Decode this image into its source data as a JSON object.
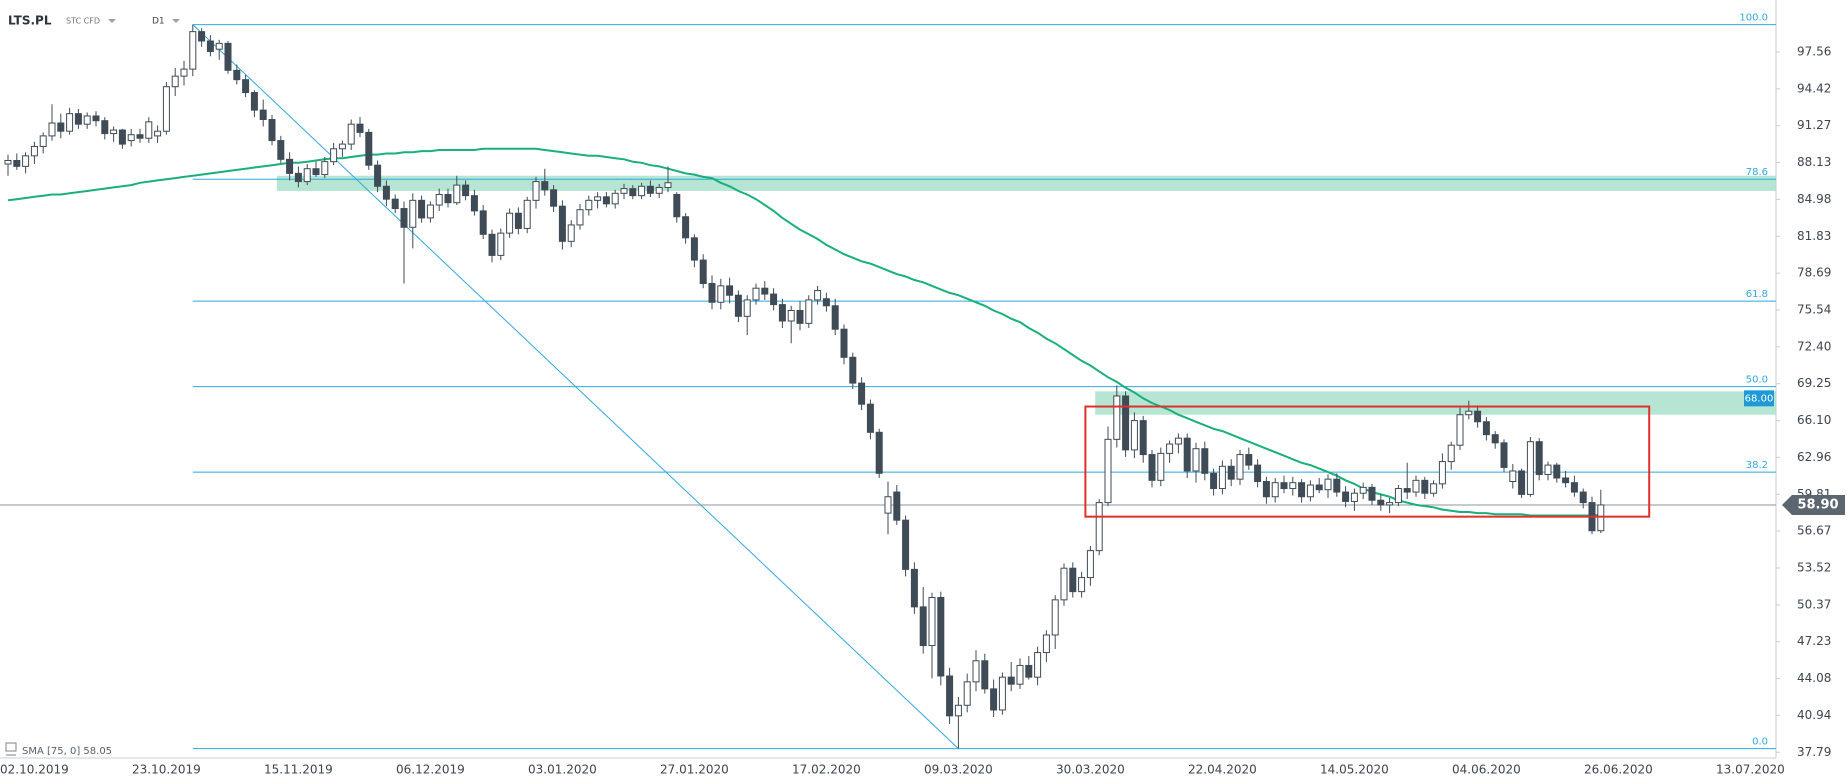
{
  "header": {
    "symbol": "LTS.PL",
    "market": "STC CFD",
    "interval": "D1"
  },
  "chart_data": {
    "type": "candlestick",
    "up_color": "#ffffff",
    "down_color": "#3f4b56",
    "categories": [
      null,
      null,
      null,
      "02.10.2019",
      null,
      null,
      null,
      null,
      null,
      null,
      null,
      null,
      null,
      null,
      null,
      null,
      null,
      null,
      "23.10.2019",
      null,
      null,
      null,
      null,
      null,
      null,
      null,
      null,
      null,
      null,
      null,
      null,
      null,
      null,
      "15.11.2019",
      null,
      null,
      null,
      null,
      null,
      null,
      null,
      null,
      null,
      null,
      null,
      null,
      null,
      null,
      "06.12.2019",
      null,
      null,
      null,
      null,
      null,
      null,
      null,
      null,
      null,
      null,
      null,
      null,
      null,
      null,
      "03.01.2020",
      null,
      null,
      null,
      null,
      null,
      null,
      null,
      null,
      null,
      null,
      null,
      null,
      null,
      null,
      "27.01.2020",
      null,
      null,
      null,
      null,
      null,
      null,
      null,
      null,
      null,
      null,
      null,
      null,
      null,
      null,
      "17.02.2020",
      null,
      null,
      null,
      null,
      null,
      null,
      null,
      null,
      null,
      null,
      null,
      null,
      null,
      null,
      "09.03.2020",
      null,
      null,
      null,
      null,
      null,
      null,
      null,
      null,
      null,
      null,
      null,
      null,
      null,
      null,
      "30.03.2020",
      null,
      null,
      null,
      null,
      null,
      null,
      null,
      null,
      null,
      null,
      null,
      null,
      null,
      null,
      "22.04.2020",
      null,
      null,
      null,
      null,
      null,
      null,
      null,
      null,
      null,
      null,
      null,
      null,
      null,
      null,
      "14.05.2020",
      null,
      null,
      null,
      null,
      null,
      null,
      null,
      null,
      null,
      null,
      null,
      null,
      null,
      null,
      "04.06.2020",
      null,
      null,
      null,
      null,
      null,
      null,
      null,
      null,
      null,
      null,
      null,
      null,
      null,
      null,
      "26.06.2020",
      null,
      null,
      null,
      null,
      null,
      null,
      null,
      null,
      null,
      null,
      null,
      null,
      null,
      null,
      "13.07.2020"
    ],
    "open": [
      88.0,
      88.3,
      87.8,
      88.7,
      89.5,
      90.4,
      91.5,
      90.8,
      92.3,
      91.4,
      92.1,
      91.7,
      90.6,
      90.9,
      90.0,
      90.5,
      90.2,
      90.4,
      90.8,
      94.6,
      95.5,
      96.1,
      99.3,
      98.5,
      97.8,
      98.3,
      96.0,
      95.2,
      94.1,
      92.6,
      91.8,
      90.0,
      88.4,
      87.2,
      86.5,
      87.6,
      87.1,
      88.2,
      89.3,
      89.7,
      91.4,
      90.7,
      87.9,
      86.1,
      85.0,
      84.2,
      82.6,
      84.9,
      83.4,
      84.5,
      85.4,
      84.7,
      86.2,
      85.3,
      84.0,
      82.0,
      80.2,
      82.1,
      83.8,
      82.5,
      84.9,
      86.5,
      85.8,
      84.4,
      81.4,
      82.8,
      84.1,
      84.9,
      85.2,
      84.6,
      85.5,
      85.9,
      85.3,
      86.1,
      85.5,
      86.0,
      85.4,
      83.5,
      81.7,
      79.8,
      77.8,
      76.2,
      77.6,
      76.8,
      75.0,
      76.4,
      77.4,
      76.9,
      76.0,
      74.6,
      75.5,
      74.4,
      76.4,
      76.5,
      75.9,
      73.9,
      71.5,
      69.3,
      67.5,
      65.1,
      58.2,
      60.0,
      57.6,
      53.4,
      50.2,
      46.9,
      51.0,
      44.3,
      40.9,
      41.8,
      43.8,
      45.6,
      43.2,
      41.4,
      44.2,
      43.6,
      45.2,
      44.2,
      46.3,
      47.8,
      50.8,
      53.5,
      51.5,
      52.7,
      55.0,
      59.1,
      64.5,
      68.2,
      63.6,
      66.1,
      63.2,
      61.0,
      63.3,
      64.1,
      64.6,
      61.8,
      63.7,
      61.6,
      60.3,
      62.2,
      61.1,
      63.2,
      62.3,
      60.9,
      59.6,
      60.8,
      60.3,
      60.8,
      59.6,
      60.6,
      60.2,
      61.1,
      60.0,
      59.2,
      59.9,
      60.4,
      59.3,
      58.9,
      59.1,
      60.3,
      60.0,
      61.0,
      59.9,
      60.7,
      62.6,
      64.0,
      66.6,
      66.9,
      66.0,
      64.9,
      64.2,
      60.9,
      61.8,
      59.8,
      64.3,
      61.5,
      62.3,
      61.2,
      60.8,
      60.0,
      59.1,
      56.7,
      null,
      null,
      null,
      null,
      null,
      null,
      null,
      null,
      null,
      null,
      null,
      null,
      null,
      null,
      null,
      null,
      null
    ],
    "high": [
      88.8,
      88.9,
      89.0,
      89.9,
      90.7,
      93.1,
      92.3,
      92.8,
      92.7,
      92.4,
      92.5,
      92.0,
      91.2,
      91.0,
      91.0,
      91.0,
      92.0,
      91.3,
      95.0,
      96.2,
      96.8,
      99.9,
      99.6,
      99.0,
      98.6,
      98.5,
      96.5,
      95.6,
      94.3,
      93.5,
      92.2,
      90.4,
      89.0,
      87.8,
      88.0,
      88.2,
      88.6,
      89.8,
      90.0,
      91.8,
      92.0,
      91.0,
      88.3,
      86.6,
      85.4,
      84.8,
      85.5,
      85.3,
      84.8,
      85.9,
      85.9,
      87.0,
      86.6,
      85.8,
      84.5,
      82.4,
      82.5,
      84.2,
      84.3,
      85.2,
      86.9,
      87.6,
      86.2,
      84.9,
      83.2,
      84.6,
      85.3,
      85.6,
      85.6,
      85.8,
      86.3,
      86.2,
      86.4,
      86.6,
      86.3,
      87.8,
      85.6,
      83.8,
      82.0,
      80.3,
      78.5,
      78.2,
      78.3,
      77.2,
      76.8,
      77.8,
      78.0,
      77.4,
      76.5,
      75.9,
      76.3,
      76.8,
      77.6,
      77.0,
      76.5,
      74.3,
      71.9,
      69.8,
      67.9,
      65.4,
      60.9,
      60.6,
      58.0,
      54.0,
      51.9,
      51.4,
      51.5,
      45.0,
      42.5,
      44.5,
      46.5,
      46.2,
      44.0,
      44.6,
      45.5,
      45.8,
      46.0,
      46.8,
      48.2,
      51.2,
      53.9,
      54.0,
      53.2,
      55.4,
      59.4,
      65.6,
      69.1,
      68.6,
      66.8,
      66.5,
      63.6,
      63.8,
      64.4,
      65.0,
      65.0,
      64.2,
      64.3,
      62.0,
      62.7,
      62.8,
      63.6,
      63.8,
      62.8,
      61.3,
      61.2,
      61.4,
      61.3,
      61.1,
      61.0,
      61.2,
      61.5,
      61.6,
      60.5,
      60.3,
      60.8,
      60.7,
      59.8,
      59.5,
      60.6,
      62.5,
      61.4,
      61.3,
      61.0,
      63.3,
      64.3,
      67.2,
      67.8,
      67.4,
      66.4,
      65.2,
      64.5,
      62.4,
      62.0,
      64.7,
      64.6,
      62.6,
      62.5,
      61.8,
      61.4,
      60.3,
      59.6,
      60.2,
      null,
      null,
      null,
      null,
      null,
      null,
      null,
      null,
      null,
      null,
      null,
      null,
      null,
      null,
      null,
      null,
      null
    ],
    "low": [
      87.0,
      87.5,
      87.2,
      88.0,
      88.9,
      90.0,
      90.2,
      90.5,
      91.0,
      91.0,
      91.2,
      90.1,
      89.9,
      89.3,
      89.5,
      89.8,
      89.8,
      89.8,
      90.5,
      93.8,
      94.7,
      95.5,
      98.0,
      97.2,
      96.9,
      95.7,
      94.8,
      93.7,
      92.0,
      91.2,
      89.6,
      88.1,
      86.6,
      86.0,
      86.2,
      86.9,
      86.8,
      87.9,
      88.6,
      89.2,
      90.3,
      87.5,
      85.6,
      84.4,
      83.8,
      77.8,
      80.8,
      83.0,
      83.0,
      84.0,
      84.3,
      84.5,
      84.9,
      83.6,
      81.6,
      79.6,
      79.8,
      81.7,
      82.0,
      82.1,
      84.2,
      85.3,
      83.9,
      80.7,
      80.9,
      82.4,
      83.6,
      84.2,
      84.3,
      84.2,
      85.0,
      85.0,
      85.0,
      85.2,
      85.1,
      85.6,
      83.0,
      81.2,
      79.2,
      77.4,
      75.6,
      75.6,
      76.1,
      74.5,
      73.4,
      76.0,
      76.4,
      75.5,
      74.0,
      72.7,
      73.8,
      74.0,
      76.0,
      75.4,
      73.4,
      70.9,
      68.8,
      67.0,
      64.5,
      61.2,
      56.4,
      57.2,
      52.8,
      49.6,
      46.2,
      44.1,
      43.5,
      40.2,
      38.1,
      41.2,
      43.0,
      42.8,
      40.8,
      41.0,
      43.0,
      43.2,
      44.0,
      43.5,
      45.5,
      46.6,
      50.3,
      51.0,
      51.0,
      52.0,
      54.6,
      58.8,
      63.8,
      63.0,
      62.9,
      62.5,
      60.4,
      60.5,
      62.5,
      63.3,
      61.2,
      60.8,
      61.0,
      59.7,
      59.8,
      60.5,
      60.6,
      61.9,
      60.4,
      59.0,
      59.1,
      59.9,
      59.7,
      59.1,
      59.2,
      59.9,
      59.5,
      59.6,
      58.7,
      58.4,
      59.4,
      58.9,
      58.4,
      58.2,
      58.8,
      59.4,
      59.6,
      59.4,
      59.6,
      60.3,
      61.9,
      63.6,
      66.2,
      65.5,
      64.4,
      63.7,
      61.7,
      60.3,
      59.5,
      59.6,
      61.0,
      61.0,
      60.8,
      60.4,
      59.6,
      58.6,
      56.4,
      56.5,
      null,
      null,
      null,
      null,
      null,
      null,
      null,
      null,
      null,
      null,
      null,
      null,
      null,
      null,
      null,
      null,
      null
    ],
    "close": [
      88.3,
      87.8,
      88.7,
      89.5,
      90.4,
      91.5,
      90.8,
      92.3,
      91.4,
      92.1,
      91.7,
      90.6,
      90.9,
      89.7,
      90.5,
      90.2,
      91.6,
      90.8,
      94.6,
      95.5,
      96.1,
      99.3,
      98.5,
      97.6,
      98.3,
      96.0,
      95.2,
      94.1,
      92.6,
      91.8,
      90.0,
      88.4,
      87.2,
      86.5,
      87.6,
      87.1,
      88.2,
      89.3,
      89.7,
      91.4,
      90.7,
      87.9,
      86.1,
      85.0,
      84.2,
      82.6,
      84.9,
      83.4,
      84.5,
      85.4,
      84.7,
      86.2,
      85.3,
      84.0,
      82.0,
      80.2,
      82.1,
      83.8,
      82.5,
      84.9,
      86.5,
      85.8,
      84.4,
      81.4,
      82.8,
      84.1,
      84.9,
      85.2,
      84.6,
      85.5,
      85.9,
      85.3,
      86.1,
      85.5,
      86.0,
      86.4,
      83.5,
      81.7,
      79.8,
      77.8,
      76.2,
      77.6,
      76.8,
      75.0,
      76.4,
      77.4,
      76.9,
      76.0,
      74.6,
      75.5,
      74.4,
      76.4,
      77.2,
      75.9,
      73.9,
      71.5,
      69.3,
      67.5,
      65.1,
      61.6,
      59.6,
      57.6,
      53.4,
      50.2,
      46.9,
      51.0,
      44.3,
      40.9,
      41.8,
      43.8,
      45.6,
      43.2,
      41.4,
      44.2,
      43.6,
      45.2,
      44.2,
      46.3,
      47.8,
      50.8,
      53.5,
      51.5,
      52.7,
      55.0,
      59.1,
      64.5,
      68.2,
      63.6,
      66.1,
      63.2,
      61.0,
      63.3,
      64.1,
      64.6,
      61.8,
      63.7,
      61.6,
      60.3,
      62.2,
      61.1,
      63.2,
      62.3,
      60.9,
      59.6,
      60.8,
      60.3,
      60.8,
      59.6,
      60.6,
      60.2,
      61.1,
      60.0,
      59.2,
      59.9,
      60.4,
      59.3,
      58.9,
      59.1,
      60.3,
      60.0,
      61.0,
      59.9,
      60.7,
      62.6,
      64.0,
      66.6,
      66.9,
      66.0,
      64.9,
      64.2,
      62.1,
      61.8,
      59.8,
      64.3,
      61.5,
      62.3,
      61.2,
      60.8,
      60.0,
      59.1,
      56.7,
      58.9,
      null,
      null,
      null,
      null,
      null,
      null,
      null,
      null,
      null,
      null,
      null,
      null,
      null,
      null,
      null,
      null,
      null
    ],
    "sma": {
      "name": "SMA [75, 0] 58.05",
      "color": "#19b07a",
      "values": [
        84.9,
        85.0,
        85.1,
        85.2,
        85.3,
        85.4,
        85.4,
        85.5,
        85.6,
        85.7,
        85.8,
        85.9,
        86.0,
        86.1,
        86.2,
        86.4,
        86.5,
        86.6,
        86.7,
        86.8,
        86.9,
        87.0,
        87.1,
        87.2,
        87.3,
        87.4,
        87.5,
        87.6,
        87.7,
        87.8,
        87.9,
        88.0,
        88.1,
        88.1,
        88.2,
        88.3,
        88.4,
        88.5,
        88.5,
        88.6,
        88.7,
        88.8,
        88.8,
        88.9,
        88.9,
        89.0,
        89.0,
        89.1,
        89.1,
        89.2,
        89.2,
        89.2,
        89.2,
        89.2,
        89.3,
        89.3,
        89.3,
        89.3,
        89.3,
        89.3,
        89.3,
        89.2,
        89.1,
        89.0,
        88.9,
        88.8,
        88.7,
        88.7,
        88.6,
        88.5,
        88.4,
        88.2,
        88.1,
        87.9,
        87.8,
        87.6,
        87.4,
        87.2,
        87.1,
        86.9,
        86.8,
        86.4,
        86.1,
        85.7,
        85.4,
        85.0,
        84.5,
        84.0,
        83.4,
        82.9,
        82.4,
        82.0,
        81.6,
        81.1,
        80.7,
        80.3,
        80.0,
        79.7,
        79.5,
        79.2,
        78.9,
        78.6,
        78.4,
        78.1,
        77.9,
        77.6,
        77.3,
        77.0,
        76.8,
        76.5,
        76.2,
        75.9,
        75.5,
        75.2,
        74.8,
        74.5,
        74.0,
        73.6,
        73.1,
        72.7,
        72.2,
        71.7,
        71.2,
        70.8,
        70.3,
        69.8,
        69.4,
        68.9,
        68.5,
        68.0,
        67.6,
        67.3,
        67.0,
        66.6,
        66.3,
        66.0,
        65.7,
        65.4,
        65.2,
        64.9,
        64.6,
        64.3,
        64.0,
        63.7,
        63.4,
        63.1,
        62.8,
        62.5,
        62.3,
        62.0,
        61.7,
        61.4,
        61.0,
        60.7,
        60.3,
        60.0,
        59.8,
        59.6,
        59.3,
        59.1,
        58.9,
        58.8,
        58.7,
        58.5,
        58.4,
        58.3,
        58.3,
        58.2,
        58.2,
        58.1,
        58.1,
        58.1,
        58.1,
        58.0,
        58.0,
        58.0,
        58.0,
        58.0,
        58.0,
        58.0,
        58.0,
        58.05,
        null,
        null,
        null,
        null,
        null,
        null,
        null,
        null,
        null,
        null,
        null,
        null,
        null,
        null,
        null,
        null,
        null
      ]
    },
    "ylim": [
      37.3,
      102.0
    ],
    "yticks": [
      97.56,
      94.42,
      91.27,
      88.13,
      84.98,
      81.83,
      78.69,
      75.54,
      {
        "value": 72.4,
        "label": "72.40"
      },
      69.25,
      {
        "value": 66.1,
        "label": "66.10"
      },
      62.96,
      59.81,
      56.67,
      53.52,
      50.37,
      47.23,
      44.08,
      40.94,
      37.79
    ],
    "grid": false,
    "fibonacci": {
      "color": "#2fa8e0",
      "levels": [
        {
          "label": "100.0",
          "price": 99.9
        },
        {
          "label": "78.6",
          "price": 86.7
        },
        {
          "label": "61.8",
          "price": 76.3
        },
        {
          "label": "50.0",
          "price": 69.0
        },
        {
          "label": "38.2",
          "price": 61.7
        },
        {
          "label": "0.0",
          "price": 38.1
        }
      ]
    },
    "zones": [
      {
        "high": 87.0,
        "low": 85.7
      },
      {
        "high": 68.6,
        "low": 66.6
      }
    ],
    "zone_color": "#9fdcc4",
    "range_box": {
      "high": 67.3,
      "low": 57.9,
      "color": "#e0302b"
    },
    "highlight_tag": {
      "value": 68.0,
      "label": "68.00",
      "color": "#1e9ad6"
    },
    "last_price": {
      "value": 58.9,
      "label": "58.90",
      "color": "#5b6670"
    }
  }
}
